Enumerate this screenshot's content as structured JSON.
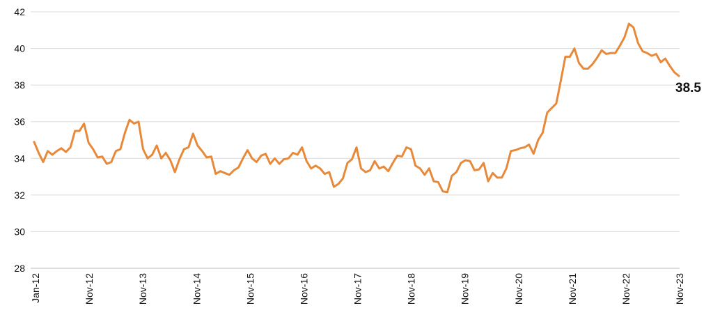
{
  "chart_data": {
    "type": "line",
    "title": "",
    "xlabel": "",
    "ylabel": "",
    "ylim": [
      28,
      42
    ],
    "y_ticks": [
      "28",
      "30",
      "32",
      "34",
      "36",
      "38",
      "40",
      "42"
    ],
    "x_ticks": [
      "Jan-12",
      "Nov-12",
      "Nov-13",
      "Nov-14",
      "Nov-15",
      "Nov-16",
      "Nov-17",
      "Nov-18",
      "Nov-19",
      "Nov-20",
      "Nov-21",
      "Nov-22",
      "Nov-23"
    ],
    "grid": "horizontal",
    "line_color": "#e8893a",
    "end_label": "38.5",
    "series": [
      {
        "values": [
          34.9,
          34.3,
          33.8,
          34.4,
          34.2,
          34.4,
          34.55,
          34.35,
          34.6,
          35.5,
          35.5,
          35.9,
          34.85,
          34.5,
          34.05,
          34.1,
          33.7,
          33.8,
          34.4,
          34.5,
          35.4,
          36.1,
          35.9,
          36.0,
          34.5,
          34.0,
          34.2,
          34.7,
          34.0,
          34.3,
          33.9,
          33.25,
          33.95,
          34.5,
          34.6,
          35.35,
          34.7,
          34.4,
          34.05,
          34.1,
          33.15,
          33.3,
          33.2,
          33.1,
          33.35,
          33.5,
          34.0,
          34.45,
          34.0,
          33.8,
          34.15,
          34.25,
          33.7,
          34.0,
          33.7,
          33.95,
          34.0,
          34.3,
          34.2,
          34.6,
          33.85,
          33.45,
          33.6,
          33.45,
          33.15,
          33.25,
          32.45,
          32.6,
          32.9,
          33.75,
          33.95,
          34.6,
          33.45,
          33.25,
          33.35,
          33.85,
          33.45,
          33.55,
          33.3,
          33.75,
          34.15,
          34.1,
          34.6,
          34.5,
          33.6,
          33.45,
          33.1,
          33.45,
          32.75,
          32.7,
          32.2,
          32.15,
          33.05,
          33.25,
          33.75,
          33.9,
          33.85,
          33.35,
          33.4,
          33.75,
          32.75,
          33.2,
          32.95,
          32.95,
          33.45,
          34.4,
          34.45,
          34.55,
          34.6,
          34.75,
          34.25,
          35.0,
          35.4,
          36.5,
          36.75,
          37.0,
          38.25,
          39.55,
          39.55,
          40.0,
          39.2,
          38.9,
          38.9,
          39.15,
          39.5,
          39.9,
          39.7,
          39.75,
          39.75,
          40.15,
          40.6,
          41.35,
          41.15,
          40.3,
          39.85,
          39.75,
          39.6,
          39.7,
          39.25,
          39.45,
          39.05,
          38.7,
          38.5
        ]
      }
    ]
  }
}
